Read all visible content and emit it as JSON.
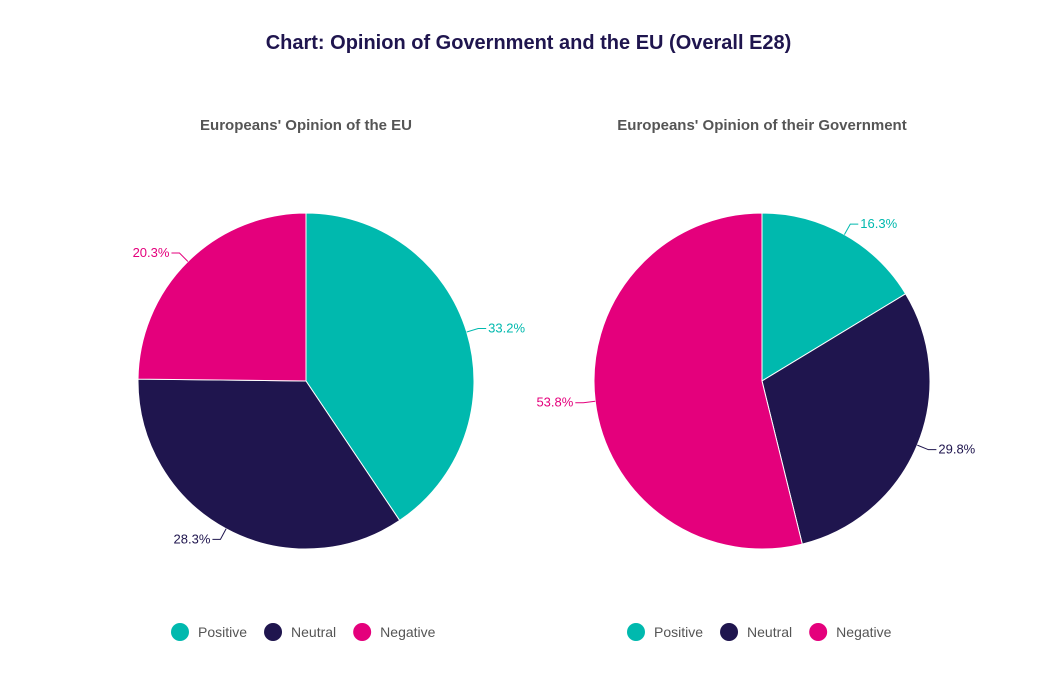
{
  "title": "Chart: Opinion of Government and the EU (Overall E28)",
  "colors": {
    "Positive": "#00B9AE",
    "Neutral": "#1F154E",
    "Negative": "#E4007C"
  },
  "chart_data": [
    {
      "type": "pie",
      "title": "Europeans' Opinion of the EU",
      "categories": [
        "Positive",
        "Neutral",
        "Negative"
      ],
      "values": [
        33.2,
        28.3,
        20.3
      ],
      "value_labels": [
        "33.2%",
        "28.3%",
        "20.3%"
      ],
      "legend": [
        "Positive",
        "Neutral",
        "Negative"
      ],
      "legend_position": "bottom"
    },
    {
      "type": "pie",
      "title": "Europeans' Opinion of their Government",
      "categories": [
        "Positive",
        "Neutral",
        "Negative"
      ],
      "values": [
        16.3,
        29.8,
        53.8
      ],
      "value_labels": [
        "16.3%",
        "29.8%",
        "53.8%"
      ],
      "legend": [
        "Positive",
        "Neutral",
        "Negative"
      ],
      "legend_position": "bottom"
    }
  ]
}
